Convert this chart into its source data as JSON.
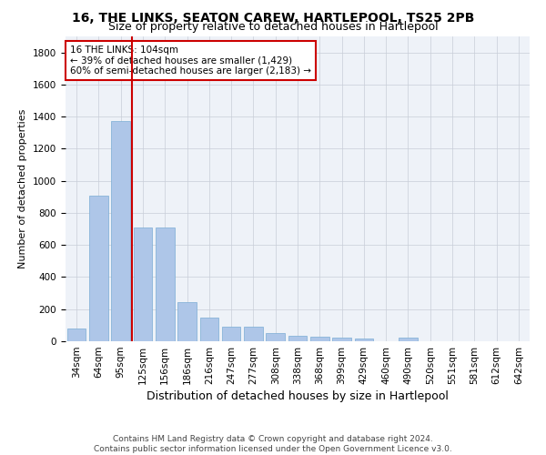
{
  "title": "16, THE LINKS, SEATON CAREW, HARTLEPOOL, TS25 2PB",
  "subtitle": "Size of property relative to detached houses in Hartlepool",
  "xlabel": "Distribution of detached houses by size in Hartlepool",
  "ylabel": "Number of detached properties",
  "categories": [
    "34sqm",
    "64sqm",
    "95sqm",
    "125sqm",
    "156sqm",
    "186sqm",
    "216sqm",
    "247sqm",
    "277sqm",
    "308sqm",
    "338sqm",
    "368sqm",
    "399sqm",
    "429sqm",
    "460sqm",
    "490sqm",
    "520sqm",
    "551sqm",
    "581sqm",
    "612sqm",
    "642sqm"
  ],
  "values": [
    80,
    910,
    1375,
    710,
    710,
    245,
    145,
    90,
    90,
    50,
    35,
    30,
    20,
    15,
    0,
    25,
    0,
    0,
    0,
    0,
    0
  ],
  "bar_color": "#aec6e8",
  "bar_edge_color": "#7badd4",
  "vline_x": 2.5,
  "vline_color": "#cc0000",
  "annotation_text": "16 THE LINKS: 104sqm\n← 39% of detached houses are smaller (1,429)\n60% of semi-detached houses are larger (2,183) →",
  "annotation_box_color": "#ffffff",
  "annotation_box_edge": "#cc0000",
  "ylim": [
    0,
    1900
  ],
  "yticks": [
    0,
    200,
    400,
    600,
    800,
    1000,
    1200,
    1400,
    1600,
    1800
  ],
  "footnote": "Contains HM Land Registry data © Crown copyright and database right 2024.\nContains public sector information licensed under the Open Government Licence v3.0.",
  "title_fontsize": 10,
  "subtitle_fontsize": 9,
  "xlabel_fontsize": 9,
  "ylabel_fontsize": 8,
  "tick_fontsize": 7.5,
  "annotation_fontsize": 7.5,
  "footnote_fontsize": 6.5,
  "background_color": "#eef2f8",
  "grid_color": "#c8cdd8"
}
